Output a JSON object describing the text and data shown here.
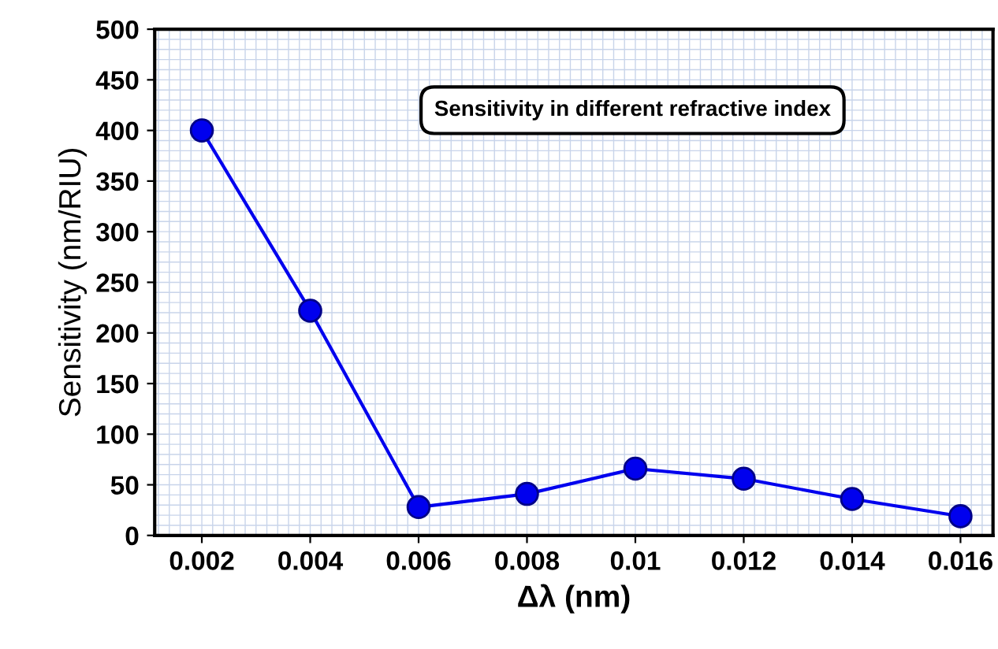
{
  "chart_data": {
    "type": "line",
    "xlabel": "Δλ (nm)",
    "ylabel": "Sensitivity (nm/RIU)",
    "annotations": [
      "Sensitivity in different refractive index"
    ],
    "x": [
      0.002,
      0.004,
      0.006,
      0.008,
      0.01,
      0.012,
      0.014,
      0.016
    ],
    "series": [
      {
        "color": "#0000ee",
        "values": [
          400,
          222,
          28,
          41,
          66,
          56,
          36,
          19
        ]
      }
    ],
    "xlim": [
      0.00113,
      0.0166
    ],
    "xticks": [
      0.002,
      0.004,
      0.006,
      0.008,
      0.01,
      0.012,
      0.014,
      0.016
    ],
    "ylim": [
      0,
      500
    ],
    "yticks": [
      0,
      50,
      100,
      150,
      200,
      250,
      300,
      350,
      400,
      450,
      500
    ],
    "grid": true,
    "marker": "circle",
    "line_style": "solid"
  }
}
